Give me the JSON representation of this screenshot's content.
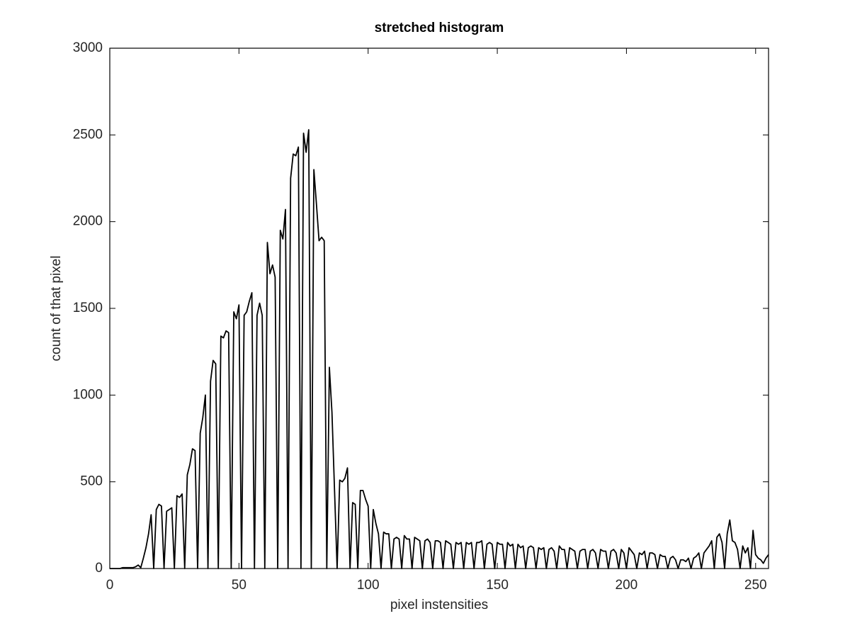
{
  "chart_data": {
    "type": "line",
    "title": "stretched histogram",
    "x_label": "pixel instensities",
    "y_label": "count of that pixel",
    "color": "#000000",
    "grid": false,
    "xlim": [
      0,
      255
    ],
    "xticks": [
      0,
      50,
      100,
      150,
      200,
      250
    ],
    "ylim": [
      0,
      3000
    ],
    "yticks": [
      0,
      500,
      1000,
      1500,
      2000,
      2500,
      3000
    ],
    "x": [
      0,
      1,
      2,
      3,
      4,
      5,
      6,
      7,
      8,
      9,
      10,
      11,
      12,
      13,
      14,
      15,
      16,
      17,
      18,
      19,
      20,
      21,
      22,
      23,
      24,
      25,
      26,
      27,
      28,
      29,
      30,
      31,
      32,
      33,
      34,
      35,
      36,
      37,
      38,
      39,
      40,
      41,
      42,
      43,
      44,
      45,
      46,
      47,
      48,
      49,
      50,
      51,
      52,
      53,
      54,
      55,
      56,
      57,
      58,
      59,
      60,
      61,
      62,
      63,
      64,
      65,
      66,
      67,
      68,
      69,
      70,
      71,
      72,
      73,
      74,
      75,
      76,
      77,
      78,
      79,
      80,
      81,
      82,
      83,
      84,
      85,
      86,
      87,
      88,
      89,
      90,
      91,
      92,
      93,
      94,
      95,
      96,
      97,
      98,
      99,
      100,
      101,
      102,
      103,
      104,
      105,
      106,
      107,
      108,
      109,
      110,
      111,
      112,
      113,
      114,
      115,
      116,
      117,
      118,
      119,
      120,
      121,
      122,
      123,
      124,
      125,
      126,
      127,
      128,
      129,
      130,
      131,
      132,
      133,
      134,
      135,
      136,
      137,
      138,
      139,
      140,
      141,
      142,
      143,
      144,
      145,
      146,
      147,
      148,
      149,
      150,
      151,
      152,
      153,
      154,
      155,
      156,
      157,
      158,
      159,
      160,
      161,
      162,
      163,
      164,
      165,
      166,
      167,
      168,
      169,
      170,
      171,
      172,
      173,
      174,
      175,
      176,
      177,
      178,
      179,
      180,
      181,
      182,
      183,
      184,
      185,
      186,
      187,
      188,
      189,
      190,
      191,
      192,
      193,
      194,
      195,
      196,
      197,
      198,
      199,
      200,
      201,
      202,
      203,
      204,
      205,
      206,
      207,
      208,
      209,
      210,
      211,
      212,
      213,
      214,
      215,
      216,
      217,
      218,
      219,
      220,
      221,
      222,
      223,
      224,
      225,
      226,
      227,
      228,
      229,
      230,
      231,
      232,
      233,
      234,
      235,
      236,
      237,
      238,
      239,
      240,
      241,
      242,
      243,
      244,
      245,
      246,
      247,
      248,
      249,
      250,
      251,
      252,
      253,
      254,
      255
    ],
    "values": [
      0,
      0,
      0,
      0,
      0,
      5,
      5,
      5,
      5,
      5,
      10,
      20,
      5,
      60,
      120,
      200,
      310,
      0,
      340,
      370,
      360,
      0,
      330,
      340,
      350,
      0,
      420,
      410,
      430,
      0,
      540,
      600,
      690,
      680,
      0,
      780,
      870,
      1000,
      0,
      1080,
      1200,
      1180,
      0,
      1340,
      1330,
      1370,
      1360,
      0,
      1480,
      1440,
      1520,
      0,
      1460,
      1480,
      1540,
      1590,
      0,
      1460,
      1530,
      1460,
      0,
      1880,
      1700,
      1750,
      1680,
      0,
      1950,
      1900,
      2070,
      0,
      2250,
      2390,
      2380,
      2430,
      0,
      2510,
      2400,
      2530,
      0,
      2300,
      2100,
      1890,
      1910,
      1890,
      0,
      1160,
      900,
      450,
      0,
      510,
      500,
      520,
      580,
      0,
      380,
      370,
      0,
      450,
      450,
      400,
      360,
      0,
      340,
      260,
      200,
      0,
      210,
      200,
      200,
      0,
      170,
      180,
      170,
      0,
      190,
      170,
      170,
      0,
      180,
      170,
      160,
      0,
      160,
      170,
      150,
      0,
      160,
      160,
      150,
      0,
      160,
      150,
      140,
      0,
      150,
      140,
      150,
      0,
      150,
      140,
      150,
      0,
      150,
      150,
      160,
      0,
      140,
      150,
      140,
      0,
      150,
      140,
      140,
      0,
      150,
      130,
      140,
      0,
      140,
      120,
      130,
      0,
      120,
      130,
      120,
      0,
      120,
      110,
      120,
      0,
      110,
      120,
      100,
      0,
      130,
      110,
      110,
      0,
      120,
      110,
      100,
      0,
      100,
      110,
      110,
      0,
      100,
      110,
      90,
      0,
      110,
      100,
      100,
      0,
      100,
      110,
      90,
      0,
      110,
      90,
      0,
      120,
      100,
      80,
      0,
      90,
      80,
      100,
      0,
      90,
      90,
      80,
      0,
      80,
      70,
      70,
      0,
      60,
      70,
      50,
      0,
      50,
      50,
      40,
      60,
      0,
      60,
      70,
      90,
      0,
      90,
      110,
      130,
      160,
      0,
      180,
      200,
      150,
      0,
      200,
      280,
      160,
      150,
      110,
      0,
      130,
      90,
      120,
      0,
      220,
      80,
      60,
      50,
      30,
      60,
      80
    ]
  }
}
